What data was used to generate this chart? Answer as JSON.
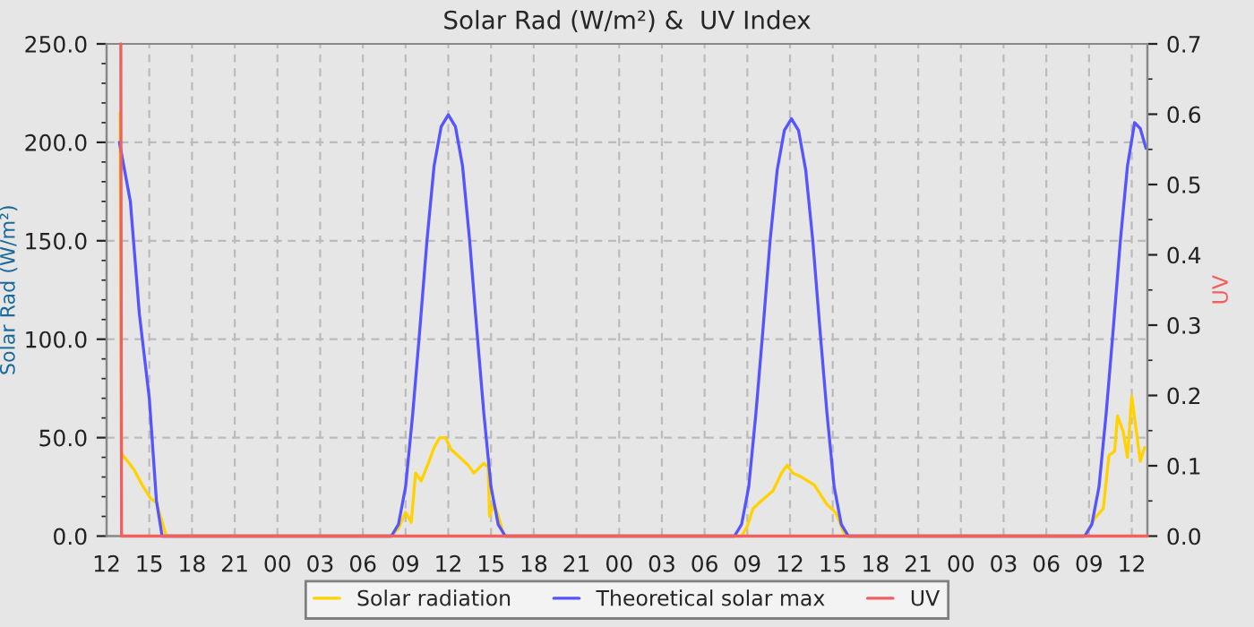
{
  "chart_data": {
    "type": "line",
    "title": "Solar Rad (W/m²) &  UV Index",
    "ylabel": "Solar Rad (W/m²)",
    "y2label": "UV",
    "xlim": [
      12,
      85.1
    ],
    "xticks": [
      12,
      15,
      18,
      21,
      {
        "value": 24,
        "label": "00"
      },
      {
        "value": 27,
        "label": "03"
      },
      {
        "value": 30,
        "label": "06"
      },
      {
        "value": 33,
        "label": "09"
      },
      {
        "value": 36,
        "label": "12"
      },
      {
        "value": 39,
        "label": "15"
      },
      {
        "value": 42,
        "label": "18"
      },
      {
        "value": 45,
        "label": "21"
      },
      {
        "value": 48,
        "label": "00"
      },
      {
        "value": 51,
        "label": "03"
      },
      {
        "value": 54,
        "label": "06"
      },
      {
        "value": 57,
        "label": "09"
      },
      {
        "value": 60,
        "label": "12"
      },
      {
        "value": 63,
        "label": "15"
      },
      {
        "value": 66,
        "label": "18"
      },
      {
        "value": 69,
        "label": "21"
      },
      {
        "value": 72,
        "label": "00"
      },
      {
        "value": 75,
        "label": "03"
      },
      {
        "value": 78,
        "label": "06"
      },
      {
        "value": 81,
        "label": "09"
      },
      {
        "value": 84,
        "label": "12"
      }
    ],
    "ylim": [
      0,
      250
    ],
    "yticks": [
      {
        "value": 0,
        "label": "0.0"
      },
      {
        "value": 50,
        "label": "50.0"
      },
      {
        "value": 100,
        "label": "100.0"
      },
      {
        "value": 150,
        "label": "150.0"
      },
      {
        "value": 200,
        "label": "200.0"
      },
      {
        "value": 250,
        "label": "250.0"
      }
    ],
    "y2lim": [
      0,
      0.7
    ],
    "y2ticks": [
      {
        "value": 0,
        "label": "0.0"
      },
      0.1,
      0.2,
      0.3,
      0.4,
      0.5,
      0.6,
      0.7
    ],
    "grid": true,
    "legend": "bottom",
    "series": [
      {
        "name": "Solar radiation",
        "color": "#ffd200",
        "x": [
          12.95,
          13.05,
          13.9,
          14.5,
          15.1,
          15.5,
          15.7,
          16.2,
          32.0,
          32.5,
          33.0,
          33.4,
          33.7,
          34.1,
          34.6,
          35.0,
          35.4,
          35.8,
          36.2,
          36.8,
          37.4,
          37.8,
          38.5,
          38.8,
          38.9,
          39.2,
          39.6,
          39.9,
          56.6,
          57.0,
          57.4,
          58.0,
          58.8,
          59.4,
          59.8,
          60.2,
          60.8,
          61.7,
          62.6,
          63.2,
          63.9,
          80.7,
          81.4,
          82.0,
          82.4,
          82.8,
          83.0,
          83.4,
          83.7,
          84.0,
          84.6,
          84.9
        ],
        "values": [
          215,
          42,
          34,
          26,
          19,
          17,
          12,
          0,
          0,
          4,
          12,
          7,
          32,
          28,
          37,
          45,
          50,
          50,
          44,
          40,
          36,
          32,
          37,
          35,
          10,
          17,
          8,
          0,
          0,
          5,
          14,
          18,
          23,
          32,
          36,
          32,
          30,
          26,
          16,
          12,
          0,
          0,
          9,
          14,
          41,
          43,
          61,
          53,
          40,
          71,
          38,
          45
        ]
      },
      {
        "name": "Theoretical solar max",
        "color": "#5555ff",
        "x": [
          12.9,
          13.67,
          14.3,
          15.0,
          15.5,
          15.9,
          32.0,
          32.5,
          33.0,
          33.5,
          34.0,
          34.5,
          35.0,
          35.5,
          36.0,
          36.5,
          37.0,
          37.5,
          38.0,
          38.5,
          39.0,
          39.5,
          40.0,
          56.1,
          56.6,
          57.1,
          57.6,
          58.1,
          58.6,
          59.1,
          59.6,
          60.1,
          60.6,
          61.1,
          61.6,
          62.1,
          62.6,
          63.1,
          63.6,
          64.1,
          80.7,
          81.2,
          81.7,
          82.2,
          82.7,
          83.2,
          83.7,
          84.2,
          84.6,
          85.0
        ],
        "values": [
          200,
          170,
          113,
          70,
          18,
          0,
          0,
          6,
          25,
          62,
          105,
          150,
          188,
          208,
          214,
          208,
          188,
          150,
          105,
          62,
          25,
          6,
          0,
          0,
          6,
          25,
          62,
          105,
          150,
          186,
          206,
          212,
          206,
          186,
          150,
          105,
          62,
          25,
          6,
          0,
          0,
          6,
          25,
          62,
          105,
          150,
          188,
          210,
          207,
          197
        ]
      },
      {
        "name": "UV",
        "color": "#f06060",
        "axis": "y2",
        "x": [
          13.0,
          13.05,
          85.1
        ],
        "values": [
          0.7,
          0,
          0
        ]
      }
    ]
  }
}
